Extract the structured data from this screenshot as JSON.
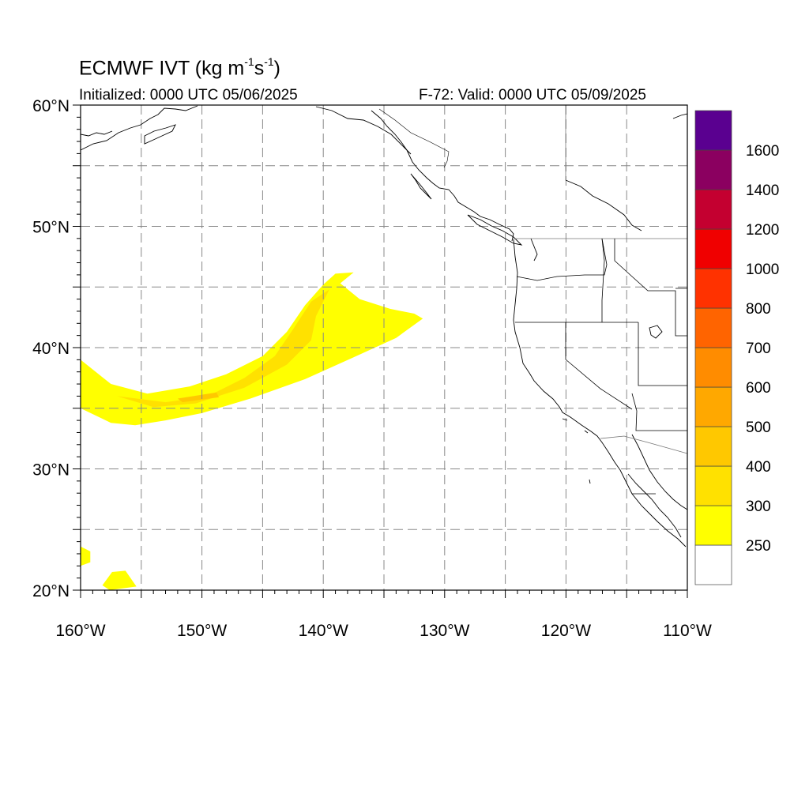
{
  "header": {
    "title_prefix": "ECMWF IVT (kg m",
    "title_sup1": "-1",
    "title_mid": "s",
    "title_sup2": "-1",
    "title_suffix": ")",
    "initialized": "Initialized: 0000 UTC 05/06/2025",
    "valid": "F-72: Valid: 0000 UTC 05/09/2025"
  },
  "map": {
    "lon_range": [
      -160,
      -110
    ],
    "lat_range": [
      20,
      60
    ],
    "grid_lon_step": 5,
    "grid_lat_step": 5,
    "grid_style": "dashed",
    "lat_tick_labels": [
      {
        "lat": 20,
        "label": "20°N"
      },
      {
        "lat": 30,
        "label": "30°N"
      },
      {
        "lat": 40,
        "label": "40°N"
      },
      {
        "lat": 50,
        "label": "50°N"
      },
      {
        "lat": 60,
        "label": "60°N"
      }
    ],
    "lon_tick_labels": [
      {
        "lon": -160,
        "label": "160°W"
      },
      {
        "lon": -150,
        "label": "150°W"
      },
      {
        "lon": -140,
        "label": "140°W"
      },
      {
        "lon": -130,
        "label": "130°W"
      },
      {
        "lon": -120,
        "label": "120°W"
      },
      {
        "lon": -110,
        "label": "110°W"
      }
    ]
  },
  "colorbar": {
    "colors": [
      "#ffffff",
      "#ffff00",
      "#ffe100",
      "#ffc800",
      "#ffa800",
      "#ff8c00",
      "#ff6400",
      "#ff3200",
      "#f00000",
      "#c40030",
      "#8b0060",
      "#5a0090"
    ],
    "labels": [
      "250",
      "300",
      "400",
      "500",
      "600",
      "700",
      "800",
      "1000",
      "1200",
      "1400",
      "1600"
    ]
  },
  "ivt_plume": {
    "description_levels": [
      250,
      300,
      400
    ],
    "outer_polygon": [
      [
        -160,
        39
      ],
      [
        -157.5,
        37
      ],
      [
        -154.5,
        36.2
      ],
      [
        -151,
        36.8
      ],
      [
        -148,
        37.8
      ],
      [
        -145,
        39.3
      ],
      [
        -143,
        41.3
      ],
      [
        -141.5,
        43.5
      ],
      [
        -140,
        45.2
      ],
      [
        -139,
        46.1
      ],
      [
        -137.5,
        46.2
      ],
      [
        -138.6,
        45.3
      ],
      [
        -137,
        44.0
      ],
      [
        -134.5,
        43.2
      ],
      [
        -132.5,
        42.8
      ],
      [
        -131.8,
        42.4
      ],
      [
        -134,
        40.8
      ],
      [
        -137.5,
        39.2
      ],
      [
        -141.5,
        37.4
      ],
      [
        -146,
        35.8
      ],
      [
        -150,
        34.6
      ],
      [
        -153,
        34.0
      ],
      [
        -155.5,
        33.6
      ],
      [
        -157.5,
        33.8
      ],
      [
        -160,
        35.0
      ]
    ],
    "mid_polygon": [
      [
        -157,
        36.0
      ],
      [
        -153,
        35.5
      ],
      [
        -149.5,
        36.0
      ],
      [
        -146.5,
        37.5
      ],
      [
        -144,
        39.3
      ],
      [
        -142.5,
        41.5
      ],
      [
        -141,
        43.8
      ],
      [
        -139.5,
        44.8
      ],
      [
        -140.6,
        42.6
      ],
      [
        -141,
        40.6
      ],
      [
        -143,
        38.6
      ],
      [
        -146.5,
        36.7
      ],
      [
        -150.5,
        35.4
      ],
      [
        -154,
        35.1
      ]
    ],
    "inner_polygon": [
      [
        -152,
        35.8
      ],
      [
        -148.8,
        36.3
      ],
      [
        -148.6,
        35.9
      ],
      [
        -151.6,
        35.5
      ]
    ],
    "hawaii_polygons": [
      [
        [
          -160,
          23.6
        ],
        [
          -159.2,
          23.2
        ],
        [
          -159.2,
          22.3
        ],
        [
          -160,
          22.0
        ]
      ],
      [
        [
          -157.4,
          21.5
        ],
        [
          -156.3,
          21.6
        ],
        [
          -155.4,
          20.3
        ],
        [
          -157.6,
          20.0
        ],
        [
          -158.2,
          20.4
        ]
      ]
    ]
  }
}
